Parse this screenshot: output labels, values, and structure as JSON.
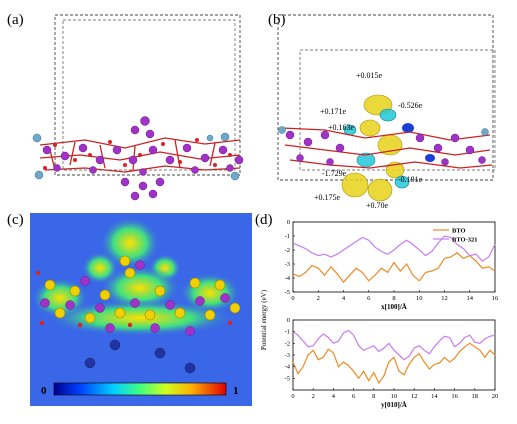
{
  "figure": {
    "panels": {
      "a": {
        "label": "(a)"
      },
      "b": {
        "label": "(b)",
        "charges": [
          "+0.015e",
          "-0.526e",
          "+0.171e",
          "+0.163e",
          "-1.729e",
          "-0.191e",
          "+0.175e",
          "+0.70e"
        ]
      },
      "c": {
        "label": "(c)",
        "scale_min": "0",
        "scale_max": "1"
      },
      "d": {
        "label": "(d)"
      }
    },
    "colors": {
      "bto": "#f08a24",
      "bto321": "#c77cf0",
      "red_atom": "#d42020",
      "purple_atom": "#9b2fc0",
      "yellow_iso": "#e8d21a",
      "cyan_iso": "#22c8d8"
    }
  },
  "chart_data": [
    {
      "type": "line",
      "xlabel": "x[100]/Å",
      "ylabel": "Potential energy (eV)",
      "xlim": [
        0,
        16
      ],
      "ylim": [
        -5,
        0
      ],
      "xticks": [
        "0",
        "2",
        "4",
        "6",
        "8",
        "10",
        "12",
        "14",
        "16"
      ],
      "yticks": [
        "0",
        "-1",
        "-2",
        "-3",
        "-4",
        "-5"
      ],
      "legend": "top-right",
      "series": [
        {
          "name": "BTO",
          "x": [
            0,
            0.5,
            1,
            1.5,
            2,
            2.5,
            3,
            3.5,
            4,
            4.5,
            5,
            5.5,
            6,
            6.5,
            7,
            7.5,
            8,
            8.5,
            9,
            9.5,
            10,
            10.5,
            11,
            11.5,
            12,
            12.5,
            13,
            13.5,
            14,
            14.5,
            15,
            15.5,
            16
          ],
          "y": [
            -3.7,
            -3.9,
            -3.6,
            -3.1,
            -3.3,
            -3.8,
            -3.2,
            -3.7,
            -4.3,
            -3.8,
            -3.3,
            -3.6,
            -4.2,
            -3.8,
            -3.3,
            -3.6,
            -2.9,
            -3.5,
            -3.0,
            -3.8,
            -4.2,
            -3.6,
            -3.5,
            -3.3,
            -2.6,
            -2.5,
            -2.2,
            -2.6,
            -2.4,
            -2.8,
            -3.3,
            -3.2,
            -3.5
          ]
        },
        {
          "name": "BTO-321",
          "x": [
            0,
            0.5,
            1,
            1.5,
            2,
            2.5,
            3,
            3.5,
            4,
            4.5,
            5,
            5.5,
            6,
            6.5,
            7,
            7.5,
            8,
            8.5,
            9,
            9.5,
            10,
            10.5,
            11,
            11.5,
            12,
            12.5,
            13,
            13.5,
            14,
            14.5,
            15,
            15.5,
            16
          ],
          "y": [
            -1.5,
            -1.7,
            -1.9,
            -2.2,
            -2.4,
            -2.3,
            -2.5,
            -2.3,
            -2.0,
            -1.7,
            -1.4,
            -1.1,
            -1.3,
            -1.8,
            -2.1,
            -2.3,
            -2.0,
            -1.6,
            -1.3,
            -1.6,
            -2.0,
            -2.4,
            -2.1,
            -1.5,
            -1.0,
            -1.1,
            -1.6,
            -1.9,
            -2.4,
            -2.3,
            -2.8,
            -2.5,
            -1.6
          ]
        }
      ]
    },
    {
      "type": "line",
      "xlabel": "y[010]/Å",
      "ylabel": "",
      "xlim": [
        0,
        20
      ],
      "ylim": [
        -6,
        0
      ],
      "xticks": [
        "0",
        "2",
        "4",
        "6",
        "8",
        "10",
        "12",
        "14",
        "16",
        "18",
        "20"
      ],
      "yticks": [
        "0",
        "-1",
        "-2",
        "-3",
        "-4",
        "-5"
      ],
      "series": [
        {
          "name": "BTO",
          "x": [
            0,
            0.5,
            1,
            1.5,
            2,
            2.5,
            3,
            3.5,
            4,
            4.5,
            5,
            5.5,
            6,
            6.5,
            7,
            7.5,
            8,
            8.5,
            9,
            9.5,
            10,
            10.5,
            11,
            11.5,
            12,
            12.5,
            13,
            13.5,
            14,
            14.5,
            15,
            15.5,
            16,
            16.5,
            17,
            17.5,
            18,
            18.5,
            19,
            19.5,
            20
          ],
          "y": [
            -3.6,
            -4.6,
            -4.0,
            -3.0,
            -2.6,
            -3.4,
            -3.2,
            -2.5,
            -2.8,
            -4.0,
            -3.6,
            -3.9,
            -4.4,
            -5.0,
            -4.4,
            -5.2,
            -4.5,
            -5.4,
            -4.8,
            -3.6,
            -3.2,
            -4.4,
            -4.7,
            -3.8,
            -3.2,
            -2.9,
            -3.6,
            -4.2,
            -3.8,
            -3.7,
            -3.2,
            -3.6,
            -3.3,
            -2.7,
            -2.3,
            -2.0,
            -2.3,
            -2.6,
            -3.2,
            -2.6,
            -3.0
          ]
        },
        {
          "name": "BTO-321",
          "x": [
            0,
            0.5,
            1,
            1.5,
            2,
            2.5,
            3,
            3.5,
            4,
            4.5,
            5,
            5.5,
            6,
            6.5,
            7,
            7.5,
            8,
            8.5,
            9,
            9.5,
            10,
            10.5,
            11,
            11.5,
            12,
            12.5,
            13,
            13.5,
            14,
            14.5,
            15,
            15.5,
            16,
            16.5,
            17,
            17.5,
            18,
            18.5,
            19,
            19.5,
            20
          ],
          "y": [
            -1.0,
            -1.3,
            -1.8,
            -2.3,
            -2.2,
            -1.6,
            -1.2,
            -1.5,
            -2.0,
            -1.8,
            -1.1,
            -0.9,
            -1.3,
            -2.2,
            -2.6,
            -2.4,
            -2.2,
            -2.7,
            -2.4,
            -2.0,
            -2.6,
            -3.0,
            -3.4,
            -3.1,
            -2.4,
            -2.2,
            -2.6,
            -2.9,
            -2.3,
            -1.8,
            -1.4,
            -1.5,
            -2.3,
            -2.0,
            -1.5,
            -1.3,
            -1.9,
            -2.0,
            -1.6,
            -1.4,
            -1.3
          ]
        }
      ]
    }
  ]
}
